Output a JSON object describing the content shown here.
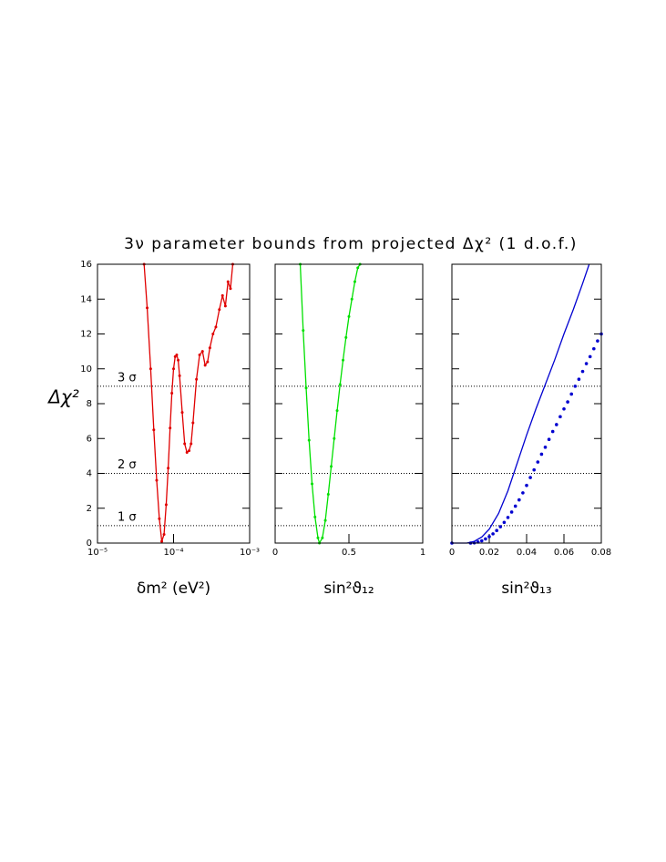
{
  "title": "3ν parameter bounds from projected Δχ² (1 d.o.f.)",
  "y_label": "Δχ²",
  "chart_data": [
    {
      "type": "line",
      "x_label": "δm² (eV²)",
      "xscale": "log",
      "xlim": [
        1e-05,
        0.001
      ],
      "xticks": [
        {
          "value": 1e-05,
          "label": "10⁻⁵"
        },
        {
          "value": 0.0001,
          "label": "10⁻⁴"
        },
        {
          "value": 0.001,
          "label": "10⁻³"
        }
      ],
      "ylim": [
        0,
        16
      ],
      "yticks": [
        0,
        2,
        4,
        6,
        8,
        10,
        12,
        14,
        16
      ],
      "ytick_labels": true,
      "annotations": [
        {
          "y": 1,
          "label": "1 σ"
        },
        {
          "y": 4,
          "label": "2 σ"
        },
        {
          "y": 9,
          "label": "3 σ"
        }
      ],
      "series": [
        {
          "color": "#e00000",
          "style": "line+dots",
          "x": [
            4.1e-05,
            4.5e-05,
            5e-05,
            5.5e-05,
            6e-05,
            6.5e-05,
            7e-05,
            7.5e-05,
            8e-05,
            8.5e-05,
            9e-05,
            9.5e-05,
            0.0001,
            0.000105,
            0.00011,
            0.000115,
            0.00012,
            0.00013,
            0.00014,
            0.00015,
            0.00016,
            0.00017,
            0.00018,
            0.0002,
            0.00022,
            0.00024,
            0.00026,
            0.00028,
            0.0003,
            0.00033,
            0.00036,
            0.0004,
            0.00044,
            0.00048,
            0.00052,
            0.00056,
            0.0006
          ],
          "values": [
            16,
            13.5,
            10,
            6.5,
            3.6,
            1.4,
            0.1,
            0.5,
            2.2,
            4.3,
            6.6,
            8.6,
            10,
            10.7,
            10.8,
            10.5,
            9.6,
            7.5,
            5.7,
            5.2,
            5.3,
            5.7,
            6.9,
            9.4,
            10.8,
            11,
            10.2,
            10.4,
            11.2,
            12,
            12.4,
            13.4,
            14.2,
            13.6,
            15,
            14.6,
            16
          ]
        }
      ]
    },
    {
      "type": "line",
      "x_label": "sin²ϑ₁₂",
      "xscale": "linear",
      "xlim": [
        0,
        1
      ],
      "xticks": [
        0,
        0.5,
        1
      ],
      "ylim": [
        0,
        16
      ],
      "yticks": [
        0,
        2,
        4,
        6,
        8,
        10,
        12,
        14,
        16
      ],
      "ytick_labels": false,
      "series": [
        {
          "color": "#00e000",
          "style": "line+dots",
          "x": [
            0.17,
            0.19,
            0.21,
            0.23,
            0.25,
            0.27,
            0.29,
            0.3,
            0.32,
            0.34,
            0.36,
            0.38,
            0.4,
            0.42,
            0.44,
            0.46,
            0.48,
            0.5,
            0.52,
            0.54,
            0.56,
            0.575
          ],
          "values": [
            16,
            12.2,
            8.9,
            5.9,
            3.4,
            1.5,
            0.3,
            0,
            0.3,
            1.3,
            2.8,
            4.4,
            6,
            7.6,
            9.1,
            10.5,
            11.8,
            13,
            14,
            15,
            15.8,
            16
          ]
        }
      ]
    },
    {
      "type": "line",
      "x_label": "sin²ϑ₁₃",
      "xscale": "linear",
      "xlim": [
        0,
        0.08
      ],
      "xticks": [
        0,
        0.02,
        0.04,
        0.06,
        0.08
      ],
      "ylim": [
        0,
        16
      ],
      "yticks": [
        0,
        2,
        4,
        6,
        8,
        10,
        12,
        14,
        16
      ],
      "ytick_labels": false,
      "series": [
        {
          "color": "#0000d0",
          "style": "line",
          "x": [
            0,
            0.008,
            0.012,
            0.016,
            0.02,
            0.025,
            0.03,
            0.035,
            0.04,
            0.045,
            0.05,
            0.055,
            0.06,
            0.065,
            0.07,
            0.0735
          ],
          "values": [
            0,
            0,
            0.1,
            0.35,
            0.8,
            1.7,
            3,
            4.6,
            6.2,
            7.7,
            9.1,
            10.5,
            12,
            13.4,
            14.9,
            16
          ]
        },
        {
          "color": "#0000d0",
          "style": "dots",
          "x": [
            0,
            0.01,
            0.012,
            0.014,
            0.016,
            0.018,
            0.02,
            0.022,
            0.024,
            0.026,
            0.028,
            0.03,
            0.032,
            0.034,
            0.036,
            0.038,
            0.04,
            0.042,
            0.044,
            0.046,
            0.048,
            0.05,
            0.052,
            0.054,
            0.056,
            0.058,
            0.06,
            0.062,
            0.064,
            0.066,
            0.068,
            0.07,
            0.072,
            0.074,
            0.076,
            0.078,
            0.08
          ],
          "values": [
            0,
            0,
            0.01,
            0.06,
            0.13,
            0.24,
            0.37,
            0.53,
            0.72,
            0.94,
            1.19,
            1.47,
            1.78,
            2.12,
            2.48,
            2.88,
            3.31,
            3.76,
            4.2,
            4.65,
            5.1,
            5.5,
            5.95,
            6.4,
            6.8,
            7.25,
            7.7,
            8.1,
            8.55,
            9,
            9.4,
            9.85,
            10.3,
            10.7,
            11.15,
            11.6,
            12
          ]
        }
      ]
    }
  ]
}
